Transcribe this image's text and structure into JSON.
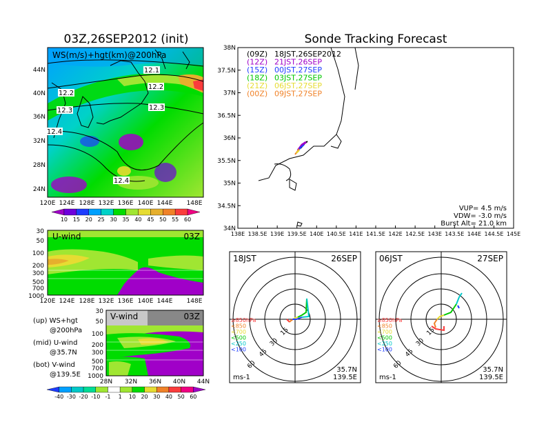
{
  "left_title": "03Z,26SEP2012 (init)",
  "right_title": "Sonde Tracking Forecast",
  "map": {
    "label": "WS(m/s)+hgt(km)@200hPa",
    "lat_ticks": [
      "44N",
      "40N",
      "36N",
      "32N",
      "28N",
      "24N"
    ],
    "lon_ticks": [
      "120E",
      "124E",
      "128E",
      "132E",
      "136E",
      "140E",
      "144E",
      "148E"
    ],
    "contour_labels": [
      "12.1",
      "12.2",
      "12.2",
      "12.3",
      "12.3",
      "12.4",
      "12.4"
    ],
    "colorbar": [
      "10",
      "15",
      "20",
      "25",
      "30",
      "35",
      "40",
      "45",
      "50",
      "55",
      "60"
    ],
    "colorbar_colors": [
      "#a000c8",
      "#6e00dc",
      "#1e3cff",
      "#00a0ff",
      "#00d2c8",
      "#00dc00",
      "#a0e632",
      "#e6dc32",
      "#e6af2d",
      "#f08228",
      "#fa3c3c",
      "#f00082"
    ]
  },
  "u_panel": {
    "label": "U-wind",
    "time": "03Z",
    "y_ticks": [
      "30",
      "50",
      "100",
      "200",
      "300",
      "500",
      "700",
      "1000"
    ],
    "x_ticks": [
      "120E",
      "124E",
      "128E",
      "132E",
      "136E",
      "140E",
      "144E",
      "148E"
    ]
  },
  "v_panel": {
    "label": "V-wind",
    "time": "03Z",
    "y_ticks": [
      "30",
      "50",
      "100",
      "200",
      "300",
      "500",
      "700",
      "1000"
    ],
    "x_ticks": [
      "28N",
      "32N",
      "36N",
      "40N",
      "44N"
    ],
    "colorbar": [
      "-40",
      "-30",
      "-20",
      "-10",
      "-1",
      "1",
      "10",
      "20",
      "30",
      "40",
      "50",
      "60"
    ],
    "colorbar_colors": [
      "#1e3cff",
      "#00a0ff",
      "#00c8c8",
      "#00dc96",
      "#a0e632",
      "#ffffff",
      "#a0e632",
      "#00dc00",
      "#e6dc32",
      "#f08228",
      "#fa3c3c",
      "#f00082",
      "#a000c8"
    ]
  },
  "legend_notes": [
    {
      "line1": "(up) WS+hgt",
      "line2": "@200hPa"
    },
    {
      "line1": "(mid) U-wind",
      "line2": "@35.7N"
    },
    {
      "line1": "(bot) V-wind",
      "line2": "@139.5E"
    }
  ],
  "tracking": {
    "lat_ticks": [
      "38N",
      "37.5N",
      "37N",
      "36.5N",
      "36N",
      "35.5N",
      "35N",
      "34.5N",
      "34N"
    ],
    "lon_ticks": [
      "138E",
      "138.5E",
      "139E",
      "139.5E",
      "140E",
      "140.5E",
      "141E",
      "141.5E",
      "142E",
      "142.5E",
      "143E",
      "143.5E",
      "144E",
      "144.5E",
      "145E"
    ],
    "legend": [
      {
        "code": "(09Z)",
        "label": "18JST,26SEP2012",
        "color": "#000000"
      },
      {
        "code": "(12Z)",
        "label": "21JST,26SEP",
        "color": "#a000c8"
      },
      {
        "code": "(15Z)",
        "label": "00JST,27SEP",
        "color": "#1e3cff"
      },
      {
        "code": "(18Z)",
        "label": "03JST,27SEP",
        "color": "#00c800"
      },
      {
        "code": "(21Z)",
        "label": "06JST,27SEP",
        "color": "#e6dc32"
      },
      {
        "code": "(00Z)",
        "label": "09JST,27SEP",
        "color": "#f08228"
      }
    ],
    "vup": "VUP= 4.5 m/s",
    "vdw": "VDW= -3.0 m/s",
    "burst": "Burst Alt= 21.0 km"
  },
  "hodographs": [
    {
      "time": "18JST",
      "date": "26SEP",
      "lat": "35.7N",
      "lon": "139.5E",
      "unit": "ms-1",
      "rings": [
        "15",
        "30",
        "45",
        "60"
      ]
    },
    {
      "time": "06JST",
      "date": "27SEP",
      "lat": "35.7N",
      "lon": "139.5E",
      "unit": "ms-1",
      "rings": [
        "15",
        "30",
        "45",
        "60"
      ]
    }
  ],
  "hodo_legend": [
    {
      "label": "≥850hPa",
      "color": "#fa3c3c"
    },
    {
      "label": "<850",
      "color": "#f08228"
    },
    {
      "label": "<700",
      "color": "#e6dc32"
    },
    {
      "label": "<500",
      "color": "#00c800"
    },
    {
      "label": "<250",
      "color": "#00c8c8"
    },
    {
      "label": "<100",
      "color": "#1e3cff"
    }
  ]
}
